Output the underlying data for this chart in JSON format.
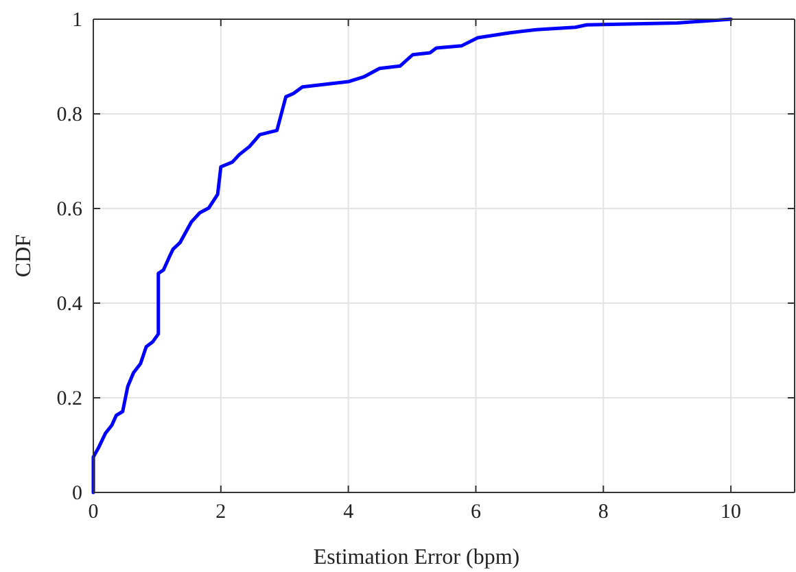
{
  "chart_data": {
    "type": "line",
    "xlabel": "Estimation Error (bpm)",
    "ylabel": "CDF",
    "xlim": [
      0,
      11
    ],
    "xticks": [
      0,
      2,
      4,
      6,
      8,
      10
    ],
    "ylim": [
      0,
      1
    ],
    "yticks": [
      0,
      0.2,
      0.4,
      0.6,
      0.8,
      1
    ],
    "grid": true,
    "series": [
      {
        "color": "#0000ff",
        "x": [
          0,
          0,
          0.08,
          0.19,
          0.29,
          0.36,
          0.46,
          0.54,
          0.63,
          0.74,
          0.83,
          0.93,
          1.02,
          1.02,
          1.1,
          1.2,
          1.25,
          1.36,
          1.54,
          1.67,
          1.81,
          1.95,
          2.0,
          2.18,
          2.29,
          2.45,
          2.61,
          2.88,
          3.02,
          3.14,
          3.28,
          4.0,
          4.24,
          4.49,
          4.81,
          5.01,
          5.28,
          5.38,
          5.78,
          6.03,
          6.52,
          6.95,
          7.56,
          7.74,
          9.16,
          10.0
        ],
        "values": [
          0,
          0.075,
          0.094,
          0.125,
          0.142,
          0.163,
          0.171,
          0.224,
          0.253,
          0.272,
          0.308,
          0.318,
          0.335,
          0.463,
          0.47,
          0.5,
          0.514,
          0.528,
          0.572,
          0.591,
          0.601,
          0.63,
          0.688,
          0.698,
          0.714,
          0.731,
          0.756,
          0.765,
          0.836,
          0.843,
          0.857,
          0.868,
          0.878,
          0.896,
          0.901,
          0.925,
          0.929,
          0.939,
          0.944,
          0.961,
          0.971,
          0.978,
          0.983,
          0.988,
          0.992,
          1.0
        ]
      }
    ]
  }
}
